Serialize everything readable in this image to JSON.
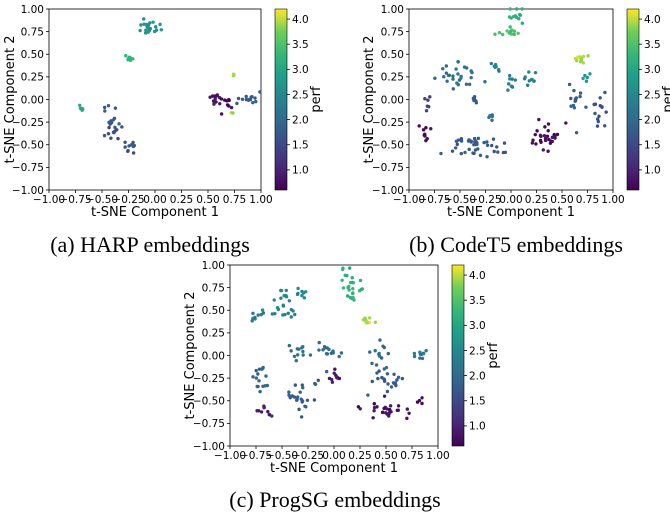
{
  "colormap": "viridis",
  "chart_data": [
    {
      "type": "scatter",
      "caption": "(a) HARP embeddings",
      "xlabel": "t-SNE Component 1",
      "ylabel": "t-SNE Component 2",
      "xlim": [
        -1.0,
        1.0
      ],
      "ylim": [
        -1.0,
        1.0
      ],
      "xticks": [
        "−1.00",
        "−0.75",
        "−0.50",
        "−0.25",
        "0.00",
        "0.25",
        "0.50",
        "0.75",
        "1.00"
      ],
      "yticks": [
        "−1.00",
        "−0.75",
        "−0.50",
        "−0.25",
        "0.00",
        "0.25",
        "0.50",
        "0.75",
        "1.00"
      ],
      "colorbar": {
        "label": "perf",
        "range": [
          0.6,
          4.2
        ],
        "ticks": [
          "1.0",
          "1.5",
          "2.0",
          "2.5",
          "3.0",
          "3.5",
          "4.0"
        ]
      },
      "clusters": [
        {
          "cx": -0.03,
          "cy": 0.8,
          "sx": 0.05,
          "sy": 0.04,
          "n": 22,
          "perf": 2.65
        },
        {
          "cx": -0.25,
          "cy": 0.45,
          "sx": 0.02,
          "sy": 0.015,
          "n": 7,
          "perf": 3.25
        },
        {
          "cx": -0.7,
          "cy": -0.1,
          "sx": 0.015,
          "sy": 0.015,
          "n": 5,
          "perf": 3.0
        },
        {
          "cx": -0.42,
          "cy": -0.2,
          "sx": 0.04,
          "sy": 0.07,
          "n": 14,
          "perf": 1.7
        },
        {
          "cx": -0.4,
          "cy": -0.35,
          "sx": 0.04,
          "sy": 0.04,
          "n": 10,
          "perf": 1.5
        },
        {
          "cx": -0.24,
          "cy": -0.55,
          "sx": 0.03,
          "sy": 0.04,
          "n": 10,
          "perf": 1.6
        },
        {
          "cx": 0.62,
          "cy": 0.0,
          "sx": 0.05,
          "sy": 0.06,
          "n": 20,
          "perf": 0.75
        },
        {
          "cx": 0.9,
          "cy": 0.0,
          "sx": 0.05,
          "sy": 0.03,
          "n": 14,
          "perf": 1.75
        },
        {
          "cx": 0.75,
          "cy": 0.27,
          "sx": 0.01,
          "sy": 0.01,
          "n": 3,
          "perf": 3.9
        },
        {
          "cx": 0.73,
          "cy": -0.16,
          "sx": 0.01,
          "sy": 0.01,
          "n": 2,
          "perf": 4.0
        }
      ]
    },
    {
      "type": "scatter",
      "caption": "(b) CodeT5 embeddings",
      "xlabel": "t-SNE Component 1",
      "ylabel": "t-SNE Component 2",
      "xlim": [
        -1.0,
        1.0
      ],
      "ylim": [
        -1.0,
        1.0
      ],
      "xticks": [
        "−1.00",
        "−0.75",
        "−0.50",
        "−0.25",
        "0.00",
        "0.25",
        "0.50",
        "0.75",
        "1.00"
      ],
      "yticks": [
        "−1.00",
        "−0.75",
        "−0.50",
        "−0.25",
        "0.00",
        "0.25",
        "0.50",
        "0.75",
        "1.00"
      ],
      "colorbar": {
        "label": "perf",
        "range": [
          0.6,
          4.2
        ],
        "ticks": [
          "1.0",
          "1.5",
          "2.0",
          "2.5",
          "3.0",
          "3.5",
          "4.0"
        ]
      },
      "clusters": [
        {
          "cx": 0.03,
          "cy": 0.93,
          "sx": 0.06,
          "sy": 0.05,
          "n": 12,
          "perf": 3.2
        },
        {
          "cx": 0.01,
          "cy": 0.75,
          "sx": 0.05,
          "sy": 0.04,
          "n": 12,
          "perf": 3.45
        },
        {
          "cx": -0.52,
          "cy": 0.25,
          "sx": 0.09,
          "sy": 0.08,
          "n": 28,
          "perf": 2.1
        },
        {
          "cx": -0.15,
          "cy": 0.35,
          "sx": 0.03,
          "sy": 0.03,
          "n": 8,
          "perf": 2.3
        },
        {
          "cx": 0.0,
          "cy": 0.2,
          "sx": 0.03,
          "sy": 0.04,
          "n": 8,
          "perf": 2.3
        },
        {
          "cx": 0.18,
          "cy": 0.23,
          "sx": 0.04,
          "sy": 0.03,
          "n": 10,
          "perf": 2.4
        },
        {
          "cx": -0.82,
          "cy": -0.02,
          "sx": 0.02,
          "sy": 0.05,
          "n": 6,
          "perf": 1.4
        },
        {
          "cx": -0.33,
          "cy": 0.0,
          "sx": 0.03,
          "sy": 0.02,
          "n": 6,
          "perf": 1.7
        },
        {
          "cx": -0.83,
          "cy": -0.38,
          "sx": 0.03,
          "sy": 0.05,
          "n": 9,
          "perf": 0.75
        },
        {
          "cx": -0.35,
          "cy": -0.5,
          "sx": 0.15,
          "sy": 0.07,
          "n": 40,
          "perf": 1.75
        },
        {
          "cx": -0.18,
          "cy": -0.18,
          "sx": 0.02,
          "sy": 0.04,
          "n": 5,
          "perf": 2.0
        },
        {
          "cx": 0.33,
          "cy": -0.4,
          "sx": 0.08,
          "sy": 0.08,
          "n": 30,
          "perf": 0.75
        },
        {
          "cx": 0.68,
          "cy": 0.45,
          "sx": 0.03,
          "sy": 0.03,
          "n": 12,
          "perf": 3.9
        },
        {
          "cx": 0.75,
          "cy": 0.25,
          "sx": 0.03,
          "sy": 0.02,
          "n": 5,
          "perf": 2.7
        },
        {
          "cx": 0.65,
          "cy": 0.0,
          "sx": 0.04,
          "sy": 0.12,
          "n": 14,
          "perf": 1.8
        },
        {
          "cx": 0.87,
          "cy": -0.1,
          "sx": 0.04,
          "sy": 0.1,
          "n": 14,
          "perf": 1.6
        }
      ]
    },
    {
      "type": "scatter",
      "caption": "(c) ProgSG embeddings",
      "xlabel": "t-SNE Component 1",
      "ylabel": "t-SNE Component 2",
      "xlim": [
        -1.0,
        1.0
      ],
      "ylim": [
        -1.0,
        1.0
      ],
      "xticks": [
        "−1.00",
        "−0.75",
        "−0.50",
        "−0.25",
        "0.00",
        "0.25",
        "0.50",
        "0.75",
        "1.00"
      ],
      "yticks": [
        "−1.00",
        "−0.75",
        "−0.50",
        "−0.25",
        "0.00",
        "0.25",
        "0.50",
        "0.75",
        "1.00"
      ],
      "colorbar": {
        "label": "perf",
        "range": [
          0.6,
          4.2
        ],
        "ticks": [
          "1.0",
          "1.5",
          "2.0",
          "2.5",
          "3.0",
          "3.5",
          "4.0"
        ]
      },
      "clusters": [
        {
          "cx": 0.1,
          "cy": 0.93,
          "sx": 0.03,
          "sy": 0.04,
          "n": 6,
          "perf": 3.15
        },
        {
          "cx": 0.17,
          "cy": 0.72,
          "sx": 0.05,
          "sy": 0.06,
          "n": 20,
          "perf": 3.25
        },
        {
          "cx": 0.33,
          "cy": 0.38,
          "sx": 0.04,
          "sy": 0.02,
          "n": 12,
          "perf": 3.95
        },
        {
          "cx": -0.5,
          "cy": 0.6,
          "sx": 0.05,
          "sy": 0.08,
          "n": 15,
          "perf": 2.5
        },
        {
          "cx": -0.32,
          "cy": 0.7,
          "sx": 0.03,
          "sy": 0.03,
          "n": 8,
          "perf": 2.5
        },
        {
          "cx": -0.7,
          "cy": 0.45,
          "sx": 0.05,
          "sy": 0.04,
          "n": 10,
          "perf": 2.3
        },
        {
          "cx": -0.43,
          "cy": 0.48,
          "sx": 0.04,
          "sy": 0.03,
          "n": 6,
          "perf": 2.3
        },
        {
          "cx": -0.33,
          "cy": 0.03,
          "sx": 0.06,
          "sy": 0.04,
          "n": 12,
          "perf": 2.1
        },
        {
          "cx": -0.05,
          "cy": 0.03,
          "sx": 0.06,
          "sy": 0.08,
          "n": 16,
          "perf": 2.0
        },
        {
          "cx": -0.72,
          "cy": -0.25,
          "sx": 0.04,
          "sy": 0.1,
          "n": 16,
          "perf": 1.9
        },
        {
          "cx": -0.3,
          "cy": -0.45,
          "sx": 0.08,
          "sy": 0.1,
          "n": 24,
          "perf": 1.75
        },
        {
          "cx": -0.68,
          "cy": -0.62,
          "sx": 0.05,
          "sy": 0.03,
          "n": 10,
          "perf": 0.9
        },
        {
          "cx": 0.0,
          "cy": -0.25,
          "sx": 0.04,
          "sy": 0.04,
          "n": 10,
          "perf": 0.9
        },
        {
          "cx": 0.45,
          "cy": 0.0,
          "sx": 0.05,
          "sy": 0.1,
          "n": 14,
          "perf": 2.0
        },
        {
          "cx": 0.52,
          "cy": -0.3,
          "sx": 0.08,
          "sy": 0.08,
          "n": 22,
          "perf": 1.75
        },
        {
          "cx": 0.5,
          "cy": -0.6,
          "sx": 0.1,
          "sy": 0.05,
          "n": 28,
          "perf": 0.8
        },
        {
          "cx": 0.83,
          "cy": 0.0,
          "sx": 0.04,
          "sy": 0.05,
          "n": 10,
          "perf": 2.15
        },
        {
          "cx": 0.83,
          "cy": -0.5,
          "sx": 0.03,
          "sy": 0.03,
          "n": 4,
          "perf": 0.75
        }
      ]
    }
  ]
}
